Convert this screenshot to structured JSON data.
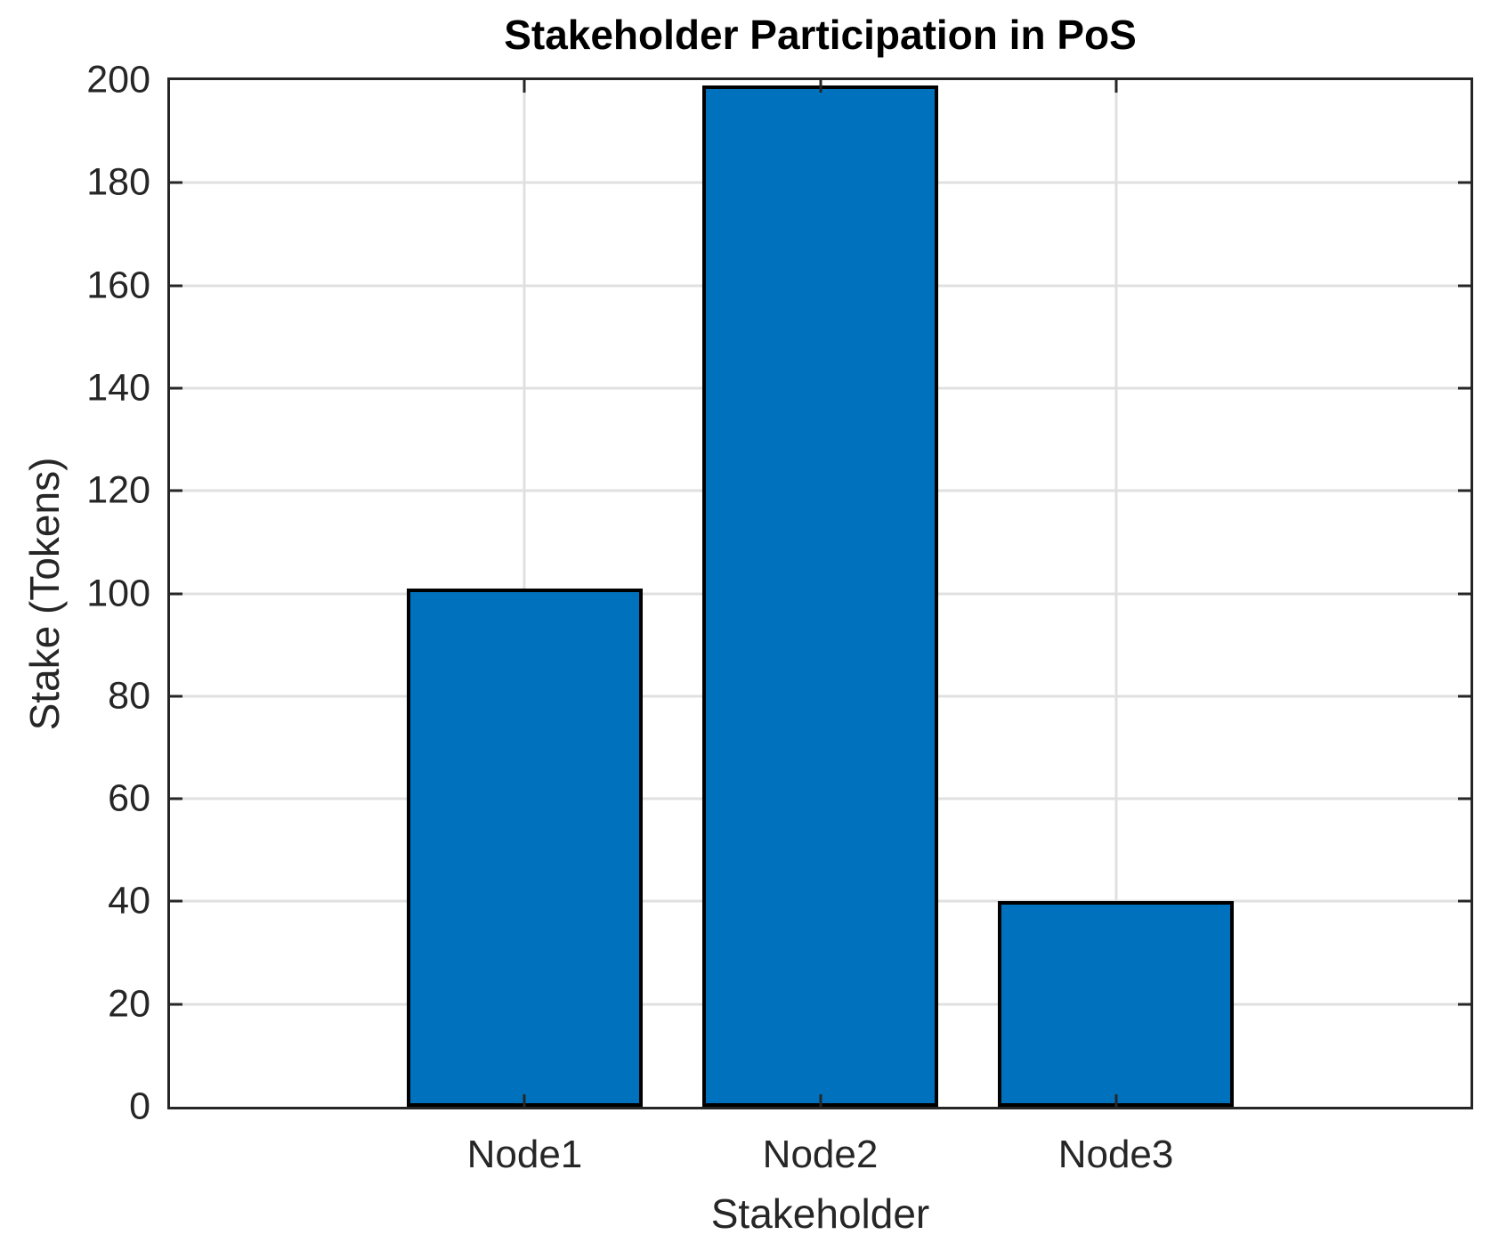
{
  "chart_data": {
    "type": "bar",
    "title": "Stakeholder Participation in PoS",
    "xlabel": "Stakeholder",
    "ylabel": "Stake (Tokens)",
    "categories": [
      "Node1",
      "Node2",
      "Node3"
    ],
    "values": [
      101,
      199,
      40
    ],
    "ylim": [
      0,
      200
    ],
    "y_ticks": [
      0,
      20,
      40,
      60,
      80,
      100,
      120,
      140,
      160,
      180,
      200
    ],
    "xlim": [
      -0.2,
      4.2
    ],
    "bar_width": 0.8,
    "grid": "on",
    "legend": "none",
    "colors": {
      "bar_fill": "#0072BD",
      "bar_edge": "#000000",
      "axis": "#262626",
      "grid": "#E0E0E0",
      "tick_text": "#262626",
      "title_text": "#000000",
      "background": "#FFFFFF"
    }
  }
}
